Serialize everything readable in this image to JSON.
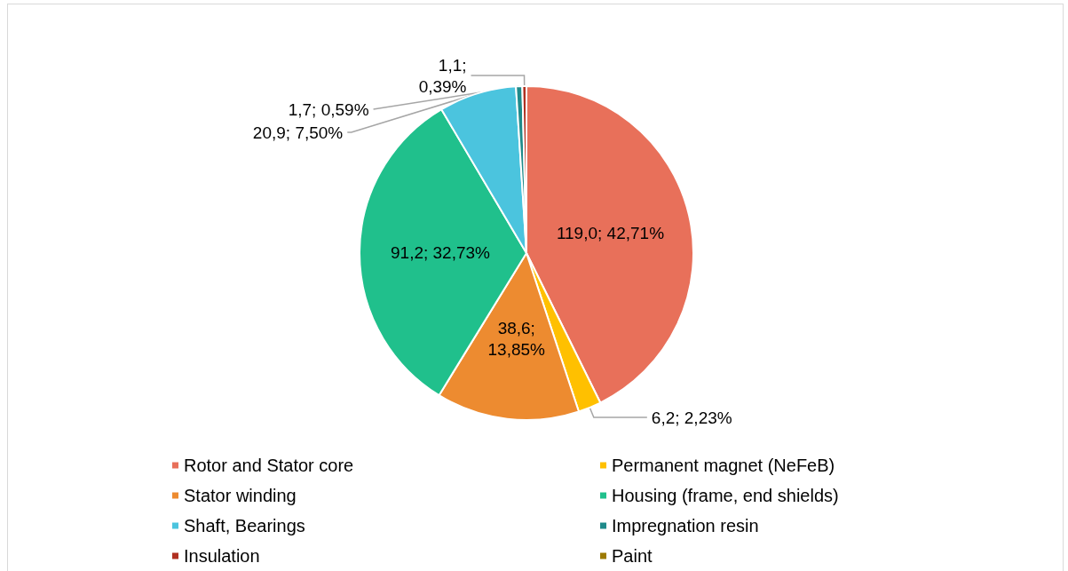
{
  "chart_data": {
    "type": "pie",
    "categories": [
      "Rotor and Stator core",
      "Permanent magnet (NeFeB)",
      "Stator winding",
      "Housing (frame, end shields)",
      "Shaft, Bearings",
      "Impregnation resin",
      "Insulation",
      "Paint"
    ],
    "values": [
      119.0,
      6.2,
      38.6,
      91.2,
      20.9,
      1.7,
      1.1,
      0
    ],
    "colors": [
      "#e8705a",
      "#ffc000",
      "#ed8b30",
      "#20c08c",
      "#4bc4de",
      "#1f8a8a",
      "#b03020",
      "#9c7a00"
    ],
    "value_labels": [
      "119,0; 42,71%",
      "6,2; 2,23%",
      "38,6;\n13,85%",
      "91,2; 32,73%",
      "20,9; 7,50%",
      "1,7; 0,59%",
      "1,1;\n0,39%",
      null
    ],
    "legend": "bottom"
  }
}
